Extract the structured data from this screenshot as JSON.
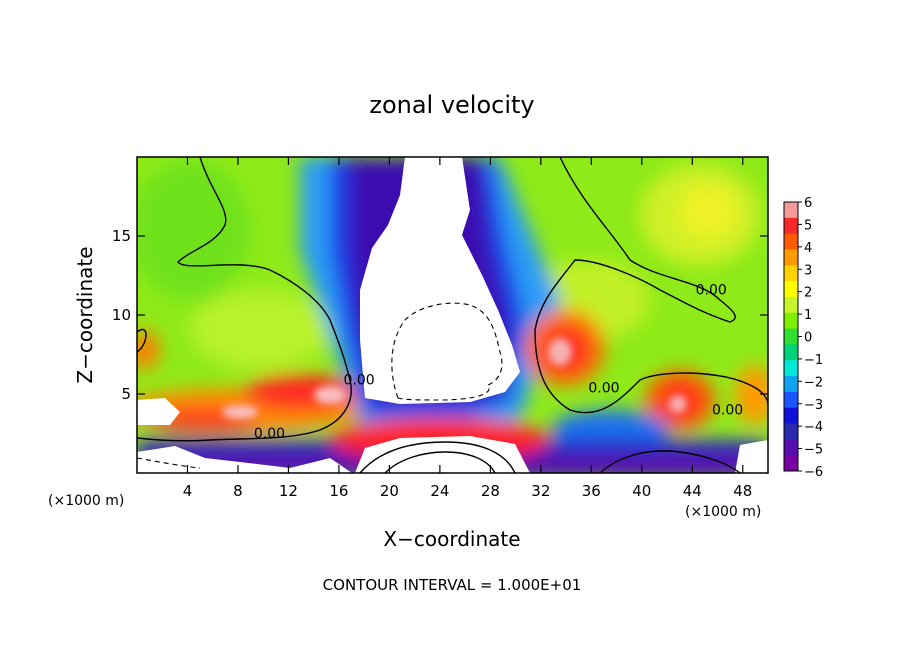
{
  "chart_data": {
    "type": "heatmap",
    "title": "zonal velocity",
    "xlabel": "X−coordinate",
    "ylabel": "Z−coordinate",
    "x_unit_left": "(×1000 m)",
    "x_unit_right": "(×1000 m)",
    "footer": "CONTOUR INTERVAL = 1.000E+01",
    "xlim": [
      0,
      50
    ],
    "ylim": [
      0,
      20
    ],
    "x_ticks": [
      {
        "value": 4,
        "label": "4"
      },
      {
        "value": 8,
        "label": "8"
      },
      {
        "value": 12,
        "label": "12"
      },
      {
        "value": 16,
        "label": "16"
      },
      {
        "value": 20,
        "label": "20"
      },
      {
        "value": 24,
        "label": "24"
      },
      {
        "value": 28,
        "label": "28"
      },
      {
        "value": 32,
        "label": "32"
      },
      {
        "value": 36,
        "label": "36"
      },
      {
        "value": 40,
        "label": "40"
      },
      {
        "value": 44,
        "label": "44"
      },
      {
        "value": 48,
        "label": "48"
      }
    ],
    "y_ticks": [
      {
        "value": 5,
        "label": "5"
      },
      {
        "value": 10,
        "label": "10"
      },
      {
        "value": 15,
        "label": "15"
      }
    ],
    "colorbar": {
      "min": -6,
      "max": 6,
      "labels": [
        "6",
        "5",
        "4",
        "3",
        "2",
        "1",
        "0",
        "−1",
        "−2",
        "−3",
        "−4",
        "−5",
        "−6"
      ],
      "colors": [
        "#f59a9a",
        "#f82828",
        "#ff5a00",
        "#ff9a00",
        "#ffd200",
        "#ffff00",
        "#c6f52b",
        "#7df000",
        "#2fde2f",
        "#00d27a",
        "#00e8d8",
        "#10a4f0",
        "#1a55ff",
        "#1010d8",
        "#2a2ab0",
        "#560eb0",
        "#7a00a0"
      ]
    },
    "contour_labels": [
      {
        "text": "0.00",
        "x": 10.5,
        "y": 2.2
      },
      {
        "text": "0.00",
        "x": 17.6,
        "y": 5.6
      },
      {
        "text": "0.00",
        "x": 37.0,
        "y": 5.1
      },
      {
        "text": "0.00",
        "x": 45.5,
        "y": 11.3
      },
      {
        "text": "0.00",
        "x": 46.8,
        "y": 3.7
      }
    ]
  }
}
